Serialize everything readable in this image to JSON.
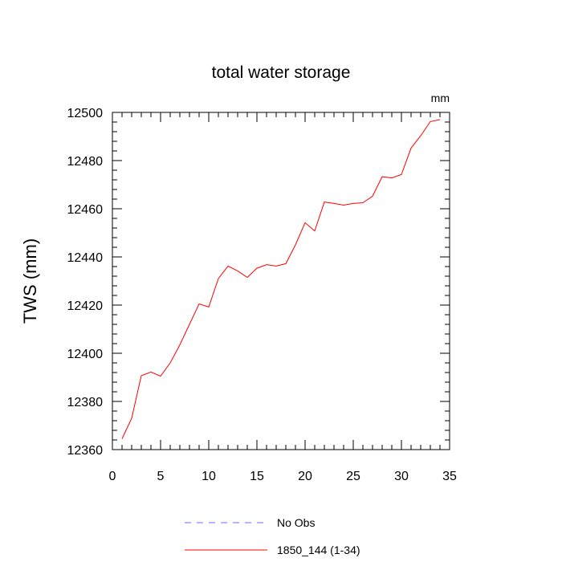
{
  "chart_data": {
    "type": "line",
    "title": "total water storage",
    "units_label": "mm",
    "ylabel": "TWS  (mm)",
    "xlabel": "",
    "xlim": [
      0,
      35
    ],
    "ylim": [
      12360,
      12500
    ],
    "x_major_ticks": [
      0,
      5,
      10,
      15,
      20,
      25,
      30,
      35
    ],
    "y_major_ticks": [
      12360,
      12380,
      12400,
      12420,
      12440,
      12460,
      12480,
      12500
    ],
    "x_minor_step": 1,
    "y_minor_step": 4,
    "grid": false,
    "legend_position": "bottom",
    "series": [
      {
        "name": "No Obs",
        "color": "#6a6aff",
        "dash": true,
        "x": [],
        "y": []
      },
      {
        "name": "1850_144 (1-34)",
        "color": "#ff0000",
        "dash": false,
        "x": [
          1,
          2,
          3,
          4,
          5,
          6,
          7,
          8,
          9,
          10,
          11,
          12,
          13,
          14,
          15,
          16,
          17,
          18,
          19,
          20,
          21,
          22,
          23,
          24,
          25,
          26,
          27,
          28,
          29,
          30,
          31,
          32,
          33,
          34
        ],
        "y": [
          12364.5,
          12373,
          12390.7,
          12392.2,
          12390.5,
          12396,
          12403.5,
          12412,
          12420.5,
          12419.2,
          12431,
          12436.2,
          12434.2,
          12431.5,
          12435.3,
          12436.8,
          12436.2,
          12437.2,
          12445,
          12454.2,
          12450.8,
          12462.8,
          12462.2,
          12461.5,
          12462.2,
          12462.5,
          12465.2,
          12473.3,
          12472.8,
          12474.2,
          12485.2,
          12490.3,
          12496.2,
          12497
        ]
      }
    ]
  }
}
